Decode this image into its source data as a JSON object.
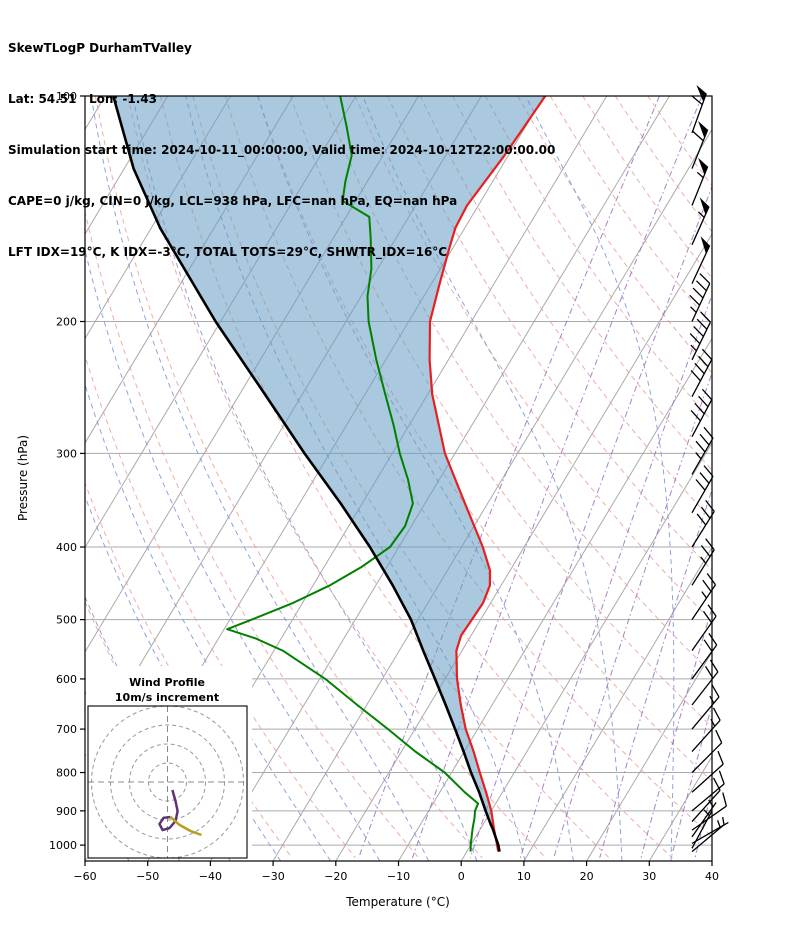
{
  "header": {
    "line1": "SkewTLogP DurhamTValley",
    "line2": "Lat: 54.51   Lon: -1.43",
    "line3": "Simulation start time: 2024-10-11_00:00:00, Valid time: 2024-10-12T22:00:00.00",
    "line4": "CAPE=0 j/kg, CIN=0 j/kg, LCL=938 hPa, LFC=nan hPa, EQ=nan hPa",
    "line5": "LFT IDX=19°C, K IDX=-3°C, TOTAL TOTS=29°C, SHWTR_IDX=16°C"
  },
  "chart_data": {
    "type": "line",
    "variant": "skew-t-log-p",
    "title": "SkewTLogP DurhamTValley",
    "xlabel": "Temperature (°C)",
    "ylabel": "Pressure (hPa)",
    "xlim": [
      -60,
      40
    ],
    "p_top": 100,
    "p_bottom": 1050,
    "x_ticks": [
      -60,
      -50,
      -40,
      -30,
      -20,
      -10,
      0,
      10,
      20,
      30,
      40
    ],
    "y_ticks": [
      100,
      200,
      300,
      400,
      500,
      600,
      700,
      800,
      900,
      1000
    ],
    "grid": true,
    "background_lines": {
      "isotherms": {
        "min": -130,
        "max": 40,
        "step": 10
      },
      "dry_adiabats": {
        "min": -40,
        "max": 170,
        "step": 10
      },
      "moist_adiabats": {
        "min": -56,
        "max": 64,
        "step": 8
      },
      "mixing_ratio_g_kg": [
        1,
        2,
        4,
        7,
        10,
        16,
        24,
        32,
        40
      ]
    },
    "temperature_profile": [
      [
        1020,
        5.0
      ],
      [
        1000,
        4.2
      ],
      [
        950,
        2.1
      ],
      [
        900,
        0.0
      ],
      [
        850,
        -2.6
      ],
      [
        800,
        -5.5
      ],
      [
        750,
        -8.5
      ],
      [
        700,
        -11.9
      ],
      [
        650,
        -15.0
      ],
      [
        600,
        -18.1
      ],
      [
        550,
        -20.9
      ],
      [
        525,
        -21.6
      ],
      [
        500,
        -21.4
      ],
      [
        475,
        -21.2
      ],
      [
        450,
        -21.8
      ],
      [
        430,
        -23.2
      ],
      [
        400,
        -26.6
      ],
      [
        350,
        -33.6
      ],
      [
        300,
        -41.6
      ],
      [
        250,
        -49.3
      ],
      [
        225,
        -53.0
      ],
      [
        200,
        -56.6
      ],
      [
        180,
        -58.5
      ],
      [
        160,
        -60.5
      ],
      [
        150,
        -61.5
      ],
      [
        140,
        -61.8
      ],
      [
        120,
        -60.6
      ],
      [
        100,
        -59.8
      ]
    ],
    "dewpoint_profile": [
      [
        1020,
        0.6
      ],
      [
        1000,
        0.0
      ],
      [
        950,
        -1.3
      ],
      [
        920,
        -2.0
      ],
      [
        900,
        -2.6
      ],
      [
        880,
        -2.8
      ],
      [
        850,
        -6.0
      ],
      [
        800,
        -11.1
      ],
      [
        750,
        -17.8
      ],
      [
        700,
        -24.3
      ],
      [
        650,
        -31.5
      ],
      [
        600,
        -39.1
      ],
      [
        550,
        -48.6
      ],
      [
        530,
        -54.0
      ],
      [
        515,
        -59.5
      ],
      [
        500,
        -56.5
      ],
      [
        475,
        -51.5
      ],
      [
        450,
        -47.3
      ],
      [
        425,
        -44.0
      ],
      [
        400,
        -41.4
      ],
      [
        375,
        -41.0
      ],
      [
        350,
        -41.9
      ],
      [
        325,
        -45.0
      ],
      [
        300,
        -48.8
      ],
      [
        275,
        -52.5
      ],
      [
        250,
        -56.8
      ],
      [
        225,
        -61.5
      ],
      [
        200,
        -66.4
      ],
      [
        185,
        -69.0
      ],
      [
        170,
        -71.0
      ],
      [
        155,
        -74.0
      ],
      [
        145,
        -76.3
      ],
      [
        138,
        -82.1
      ],
      [
        130,
        -83.5
      ],
      [
        120,
        -85.0
      ],
      [
        110,
        -88.5
      ],
      [
        100,
        -92.5
      ]
    ],
    "parcel_profile": [
      [
        1020,
        5.2
      ],
      [
        1000,
        4.4
      ],
      [
        950,
        1.9
      ],
      [
        938,
        1.2
      ],
      [
        900,
        -0.9
      ],
      [
        850,
        -3.7
      ],
      [
        800,
        -6.9
      ],
      [
        750,
        -10.1
      ],
      [
        700,
        -13.6
      ],
      [
        650,
        -17.4
      ],
      [
        600,
        -21.6
      ],
      [
        550,
        -26.2
      ],
      [
        500,
        -31.1
      ],
      [
        450,
        -37.3
      ],
      [
        400,
        -44.6
      ],
      [
        350,
        -53.4
      ],
      [
        300,
        -64.0
      ],
      [
        250,
        -76.0
      ],
      [
        200,
        -90.8
      ],
      [
        150,
        -108.6
      ],
      [
        125,
        -118.5
      ],
      [
        100,
        -128.7
      ]
    ],
    "wind_barbs": [
      [
        112,
        60,
        20
      ],
      [
        125,
        60,
        22
      ],
      [
        140,
        55,
        22
      ],
      [
        158,
        55,
        24
      ],
      [
        178,
        50,
        25
      ],
      [
        200,
        45,
        25
      ],
      [
        225,
        45,
        26
      ],
      [
        252,
        40,
        28
      ],
      [
        285,
        40,
        28
      ],
      [
        320,
        35,
        30
      ],
      [
        360,
        30,
        30
      ],
      [
        400,
        30,
        32
      ],
      [
        450,
        25,
        32
      ],
      [
        500,
        25,
        34
      ],
      [
        550,
        20,
        35
      ],
      [
        600,
        20,
        36
      ],
      [
        650,
        18,
        38
      ],
      [
        700,
        15,
        40
      ],
      [
        750,
        15,
        42
      ],
      [
        800,
        12,
        45
      ],
      [
        850,
        10,
        48
      ],
      [
        900,
        10,
        50
      ],
      [
        930,
        8,
        42
      ],
      [
        955,
        8,
        55
      ],
      [
        975,
        7,
        35
      ],
      [
        995,
        6,
        60
      ],
      [
        1010,
        5,
        28
      ],
      [
        1020,
        5,
        50
      ]
    ],
    "hodograph": {
      "title_line1": "Wind Profile",
      "title_line2": "10m/s increment",
      "ring_increment_ms": 10,
      "rings": [
        10,
        20,
        30,
        40
      ],
      "trace_purple_uv": [
        [
          2.6,
          -4.2
        ],
        [
          4.2,
          -10.0
        ],
        [
          5.3,
          -15.3
        ],
        [
          4.2,
          -20.5
        ],
        [
          1.1,
          -24.2
        ],
        [
          -2.6,
          -25.3
        ],
        [
          -4.2,
          -22.1
        ],
        [
          -2.1,
          -18.9
        ],
        [
          1.6,
          -18.4
        ]
      ],
      "trace_yellow_uv": [
        [
          1.6,
          -18.4
        ],
        [
          6.3,
          -22.6
        ],
        [
          12.1,
          -25.8
        ],
        [
          17.9,
          -27.9
        ]
      ]
    },
    "colors": {
      "temperature": "#e62020",
      "dewpoint": "#008000",
      "parcel": "#000000",
      "cin_fill": "rgba(100,155,195,0.55)",
      "isoline": "#aaaaaa",
      "dry_adiabat": "#e89999",
      "moist_adiabat": "#7f93d6",
      "mixing_ratio": "#9a6bbf",
      "barb": "#000000",
      "hodo_trace": "#5e3370",
      "hodo_trace_tail": "#b5a017",
      "hodo_grid": "#999999"
    }
  }
}
